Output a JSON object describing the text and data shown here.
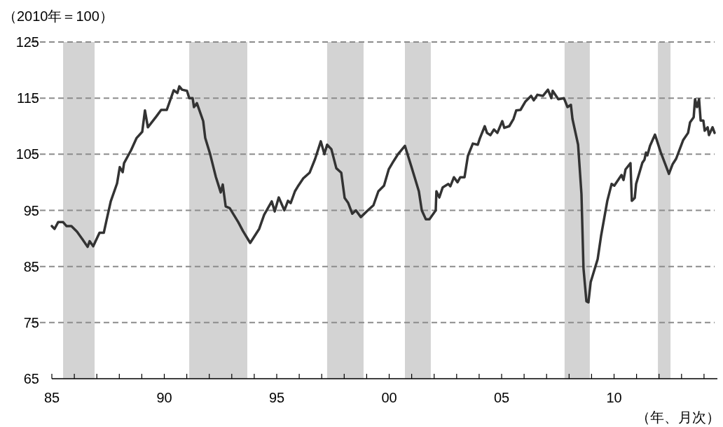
{
  "chart_data": {
    "type": "line",
    "ylabel": "（2010年＝100）",
    "xlabel": "（年、月次）",
    "color": "#333333",
    "line_style": "solid",
    "grid": "y",
    "xlim": [
      1985,
      2014.47
    ],
    "ylim": [
      65,
      125
    ],
    "xticks": [
      {
        "value": 1985,
        "label": "85"
      },
      {
        "value": 1986,
        "label": null
      },
      {
        "value": 1987,
        "label": null
      },
      {
        "value": 1988,
        "label": null
      },
      {
        "value": 1989,
        "label": null
      },
      {
        "value": 1990,
        "label": "90"
      },
      {
        "value": 1991,
        "label": null
      },
      {
        "value": 1992,
        "label": null
      },
      {
        "value": 1993,
        "label": null
      },
      {
        "value": 1994,
        "label": null
      },
      {
        "value": 1995,
        "label": "95"
      },
      {
        "value": 1996,
        "label": null
      },
      {
        "value": 1997,
        "label": null
      },
      {
        "value": 1998,
        "label": null
      },
      {
        "value": 1999,
        "label": null
      },
      {
        "value": 2000,
        "label": "00"
      },
      {
        "value": 2001,
        "label": null
      },
      {
        "value": 2002,
        "label": null
      },
      {
        "value": 2003,
        "label": null
      },
      {
        "value": 2004,
        "label": null
      },
      {
        "value": 2005,
        "label": "05"
      },
      {
        "value": 2006,
        "label": null
      },
      {
        "value": 2007,
        "label": null
      },
      {
        "value": 2008,
        "label": null
      },
      {
        "value": 2009,
        "label": null
      },
      {
        "value": 2010,
        "label": "10"
      },
      {
        "value": 2011,
        "label": null
      },
      {
        "value": 2012,
        "label": null
      },
      {
        "value": 2013,
        "label": null
      },
      {
        "value": 2014,
        "label": null
      }
    ],
    "yticks": [
      65,
      75,
      85,
      95,
      105,
      115,
      125
    ],
    "bands": [
      {
        "axis": "x",
        "from": 1985.5,
        "to": 1986.9,
        "color": "#d3d3d3"
      },
      {
        "axis": "x",
        "from": 1991.11,
        "to": 1993.69,
        "color": "#d3d3d3"
      },
      {
        "axis": "x",
        "from": 1997.24,
        "to": 1998.86,
        "color": "#d3d3d3"
      },
      {
        "axis": "x",
        "from": 2000.7,
        "to": 2001.85,
        "color": "#d3d3d3"
      },
      {
        "axis": "x",
        "from": 2007.8,
        "to": 2008.92,
        "color": "#d3d3d3"
      },
      {
        "axis": "x",
        "from": 2011.95,
        "to": 2012.51,
        "color": "#d3d3d3"
      }
    ],
    "x": [
      1985.0,
      1985.12,
      1985.28,
      1985.5,
      1985.65,
      1985.87,
      1986.12,
      1986.37,
      1986.59,
      1986.68,
      1986.84,
      1987.12,
      1987.31,
      1987.43,
      1987.62,
      1987.9,
      1988.02,
      1988.15,
      1988.21,
      1988.52,
      1988.77,
      1989.02,
      1989.14,
      1989.27,
      1989.64,
      1989.86,
      1990.11,
      1990.42,
      1990.58,
      1990.67,
      1990.79,
      1991.01,
      1991.11,
      1991.26,
      1991.32,
      1991.45,
      1991.73,
      1991.82,
      1992.04,
      1992.29,
      1992.51,
      1992.6,
      1992.73,
      1992.91,
      1993.29,
      1993.5,
      1993.82,
      1994.22,
      1994.44,
      1994.78,
      1994.91,
      1995.09,
      1995.34,
      1995.5,
      1995.62,
      1995.81,
      1995.93,
      1996.18,
      1996.46,
      1996.71,
      1996.96,
      1997.12,
      1997.24,
      1997.43,
      1997.65,
      1997.87,
      1998.02,
      1998.18,
      1998.36,
      1998.52,
      1998.74,
      1999.05,
      1999.3,
      1999.52,
      1999.77,
      1999.98,
      2000.2,
      2000.39,
      2000.7,
      2000.98,
      2001.32,
      2001.45,
      2001.63,
      2001.79,
      2002.07,
      2002.1,
      2002.23,
      2002.38,
      2002.63,
      2002.72,
      2002.88,
      2003.04,
      2003.16,
      2003.35,
      2003.5,
      2003.72,
      2003.94,
      2004.03,
      2004.25,
      2004.35,
      2004.5,
      2004.66,
      2004.81,
      2005.03,
      2005.12,
      2005.34,
      2005.53,
      2005.65,
      2005.84,
      2006.06,
      2006.31,
      2006.43,
      2006.59,
      2006.84,
      2007.06,
      2007.21,
      2007.27,
      2007.52,
      2007.77,
      2007.93,
      2008.08,
      2008.15,
      2008.4,
      2008.55,
      2008.64,
      2008.77,
      2008.86,
      2008.96,
      2009.27,
      2009.42,
      2009.7,
      2009.89,
      2010.01,
      2010.33,
      2010.42,
      2010.51,
      2010.73,
      2010.79,
      2010.92,
      2010.98,
      2011.26,
      2011.35,
      2011.42,
      2011.48,
      2011.6,
      2011.82,
      2012.07,
      2012.44,
      2012.6,
      2012.76,
      2013.07,
      2013.29,
      2013.38,
      2013.54,
      2013.6,
      2013.69,
      2013.78,
      2013.85,
      2013.97,
      2014.03,
      2014.16,
      2014.22,
      2014.38,
      2014.47
    ],
    "values": [
      92.2,
      91.7,
      92.9,
      92.9,
      92.2,
      92.2,
      91.2,
      89.8,
      88.5,
      89.5,
      88.6,
      91.0,
      91.0,
      93.2,
      96.6,
      99.8,
      102.7,
      101.8,
      103.4,
      105.7,
      107.9,
      109.0,
      112.8,
      109.8,
      111.7,
      112.9,
      112.9,
      116.4,
      115.9,
      117.1,
      116.5,
      116.3,
      115.0,
      115.0,
      113.4,
      114.1,
      110.9,
      107.9,
      105.0,
      101.0,
      98.2,
      99.6,
      95.7,
      95.4,
      92.9,
      91.3,
      89.2,
      91.7,
      94.2,
      96.6,
      94.8,
      97.3,
      95.0,
      96.7,
      96.3,
      98.4,
      99.2,
      100.7,
      101.7,
      104.2,
      107.3,
      105.0,
      106.7,
      105.9,
      102.5,
      101.7,
      97.2,
      96.3,
      94.4,
      95.0,
      93.8,
      95.0,
      95.9,
      98.4,
      99.4,
      102.3,
      103.8,
      105.0,
      106.5,
      102.9,
      98.4,
      95.0,
      93.4,
      93.4,
      95.0,
      98.4,
      97.3,
      99.1,
      99.7,
      99.3,
      100.9,
      100.0,
      100.9,
      100.9,
      104.7,
      106.9,
      106.7,
      107.8,
      110.0,
      108.8,
      108.4,
      109.4,
      108.8,
      110.9,
      109.7,
      110.0,
      111.3,
      112.8,
      112.9,
      114.4,
      115.4,
      114.6,
      115.6,
      115.4,
      116.5,
      115.0,
      116.3,
      114.8,
      115.0,
      113.4,
      113.8,
      111.3,
      106.7,
      97.9,
      84.7,
      78.8,
      78.6,
      82.2,
      86.3,
      90.4,
      96.7,
      99.7,
      99.4,
      101.3,
      100.4,
      102.3,
      103.4,
      96.7,
      97.2,
      99.7,
      103.5,
      104.0,
      105.3,
      104.8,
      106.5,
      108.5,
      105.4,
      101.5,
      103.2,
      104.2,
      107.5,
      108.8,
      110.7,
      111.6,
      114.8,
      113.4,
      114.8,
      111.0,
      111.0,
      109.2,
      109.8,
      108.4,
      109.8,
      108.8
    ]
  }
}
